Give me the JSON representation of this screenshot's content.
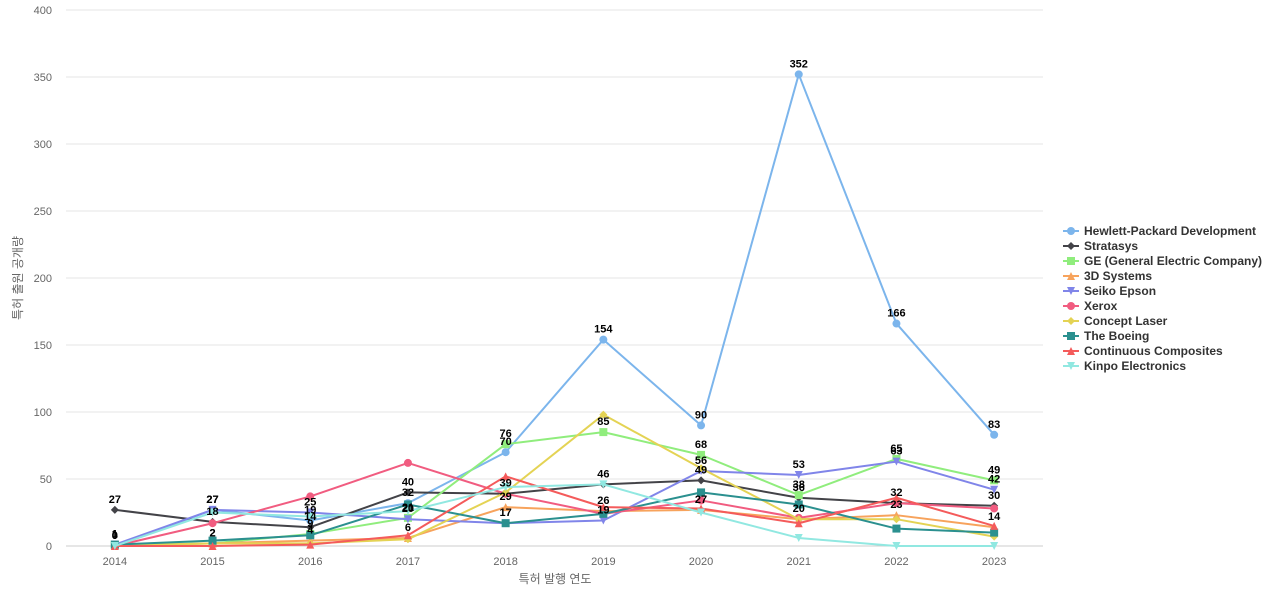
{
  "chart_data": {
    "type": "line",
    "xlabel": "특허 발행 연도",
    "ylabel": "특허 출원 공개량",
    "x": [
      "2014",
      "2015",
      "2016",
      "2017",
      "2018",
      "2019",
      "2020",
      "2021",
      "2022",
      "2023"
    ],
    "ylim": [
      0,
      400
    ],
    "yticks": [
      0,
      50,
      100,
      150,
      200,
      250,
      300,
      350,
      400
    ],
    "grid": true,
    "legend_position": "right",
    "series": [
      {
        "name": "Hewlett-Packard Development",
        "color": "#7cb5ec",
        "marker": "circle",
        "values": [
          0,
          27,
          19,
          32,
          70,
          154,
          90,
          352,
          166,
          83
        ],
        "labeled": true
      },
      {
        "name": "Stratasys",
        "color": "#434348",
        "marker": "diamond",
        "values": [
          27,
          18,
          14,
          40,
          39,
          46,
          49,
          36,
          32,
          30
        ],
        "labeled": true
      },
      {
        "name": "GE (General Electric Company)",
        "color": "#90ed7d",
        "marker": "square",
        "values": [
          1,
          2,
          9,
          21,
          76,
          85,
          68,
          38,
          65,
          49
        ],
        "labeled": true
      },
      {
        "name": "3D Systems",
        "color": "#f7a35c",
        "marker": "triangle",
        "values": [
          0,
          2,
          4,
          6,
          29,
          26,
          27,
          20,
          23,
          14
        ],
        "labeled": true
      },
      {
        "name": "Seiko Epson",
        "color": "#8085e9",
        "marker": "triangle-down",
        "values": [
          1,
          27,
          25,
          20,
          17,
          19,
          56,
          53,
          63,
          42
        ],
        "labeled": true
      },
      {
        "name": "Xerox",
        "color": "#f15c80",
        "marker": "circle",
        "values": [
          0,
          17,
          37,
          62,
          39,
          24,
          34,
          21,
          32,
          28
        ],
        "labeled": false
      },
      {
        "name": "Concept Laser",
        "color": "#e4d354",
        "marker": "diamond",
        "values": [
          0,
          2,
          2,
          5,
          40,
          98,
          58,
          20,
          20,
          7
        ],
        "labeled": false
      },
      {
        "name": "The Boeing",
        "color": "#2b908f",
        "marker": "square",
        "values": [
          1,
          4,
          8,
          31,
          17,
          24,
          40,
          31,
          13,
          10
        ],
        "labeled": false
      },
      {
        "name": "Continuous Composites",
        "color": "#f45b5b",
        "marker": "triangle",
        "values": [
          0,
          0,
          1,
          8,
          52,
          29,
          28,
          17,
          36,
          15
        ],
        "labeled": false
      },
      {
        "name": "Kinpo Electronics",
        "color": "#91e8e1",
        "marker": "triangle-down",
        "values": [
          0,
          25,
          22,
          26,
          44,
          46,
          25,
          6,
          0,
          0
        ],
        "labeled": false
      }
    ]
  }
}
